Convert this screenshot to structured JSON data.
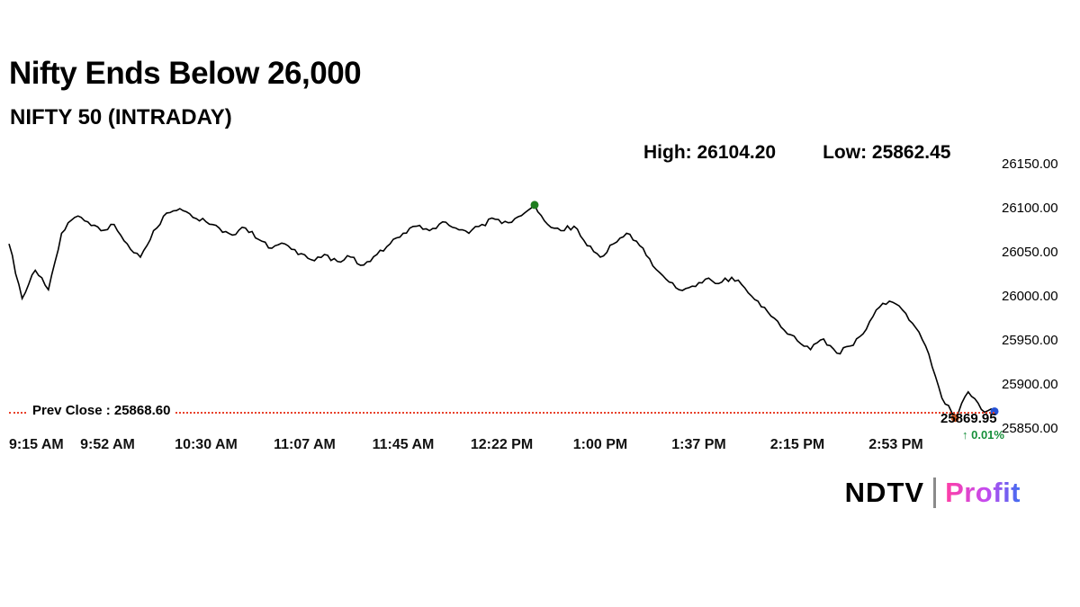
{
  "header": {
    "title": "Nifty Ends Below 26,000",
    "subtitle": "NIFTY 50 (INTRADAY)",
    "high_label": "High: 26104.20",
    "low_label": "Low: 25862.45"
  },
  "chart_data": {
    "type": "line",
    "title": "NIFTY 50 (INTRADAY)",
    "grid": false,
    "legend": false,
    "x_start": "9:15 AM",
    "x_end": "3:30 PM",
    "interval_minutes": 5,
    "x_ticks": [
      "9:15 AM",
      "9:52 AM",
      "10:30 AM",
      "11:07 AM",
      "11:45 AM",
      "12:22 PM",
      "1:00 PM",
      "1:37 PM",
      "2:15 PM",
      "2:53 PM"
    ],
    "y_ticks": [
      {
        "value": 26150,
        "label": "26150.00"
      },
      {
        "value": 26100,
        "label": "26100.00"
      },
      {
        "value": 26050,
        "label": "26050.00"
      },
      {
        "value": 26000,
        "label": "26000.00"
      },
      {
        "value": 25950,
        "label": "25950.00"
      },
      {
        "value": 25900,
        "label": "25900.00"
      },
      {
        "value": 25850,
        "label": "25850.00"
      }
    ],
    "ylim": [
      25850,
      26150
    ],
    "series": [
      {
        "name": "NIFTY 50",
        "values": [
          26060,
          25998,
          26030,
          26008,
          26072,
          26090,
          26085,
          26075,
          26082,
          26060,
          26045,
          26075,
          26095,
          26100,
          26090,
          26085,
          26078,
          26070,
          26078,
          26065,
          26055,
          26060,
          26048,
          26042,
          26048,
          26040,
          26045,
          26036,
          26048,
          26060,
          26072,
          26080,
          26075,
          26085,
          26078,
          26072,
          26082,
          26088,
          26084,
          26092,
          26104.2,
          26082,
          26075,
          26080,
          26058,
          26045,
          26060,
          26072,
          26058,
          26035,
          26020,
          26008,
          26012,
          26020,
          26015,
          26022,
          26010,
          25995,
          25978,
          25962,
          25950,
          25940,
          25952,
          25936,
          25944,
          25958,
          25985,
          25995,
          25985,
          25965,
          25935,
          25885,
          25862.45,
          25892,
          25872,
          25869.95
        ]
      }
    ],
    "high_value": 26104.2,
    "low_value": 25862.45,
    "last_value": 25869.95,
    "prev_close": 25868.6,
    "prev_close_label": "Prev Close : 25868.60",
    "last_label": "25869.95",
    "change_label": "↑ 0.01%",
    "colors": {
      "line": "#000000",
      "prev_close": "#e8402a",
      "high_marker": "#1e7d1e",
      "low_marker": "#cf5a28",
      "last_marker": "#2451d4",
      "change_text": "#17903b"
    }
  },
  "brand": {
    "ndtv": "NDTV",
    "profit": "Profit"
  }
}
